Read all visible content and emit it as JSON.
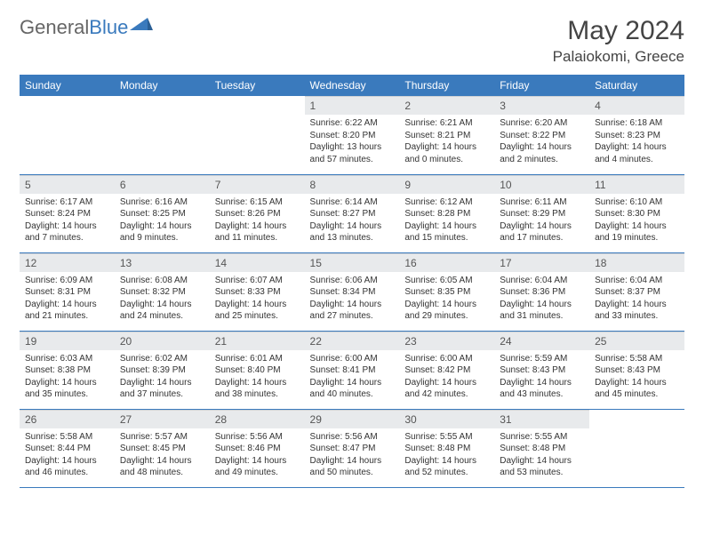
{
  "logo": {
    "general": "General",
    "blue": "Blue"
  },
  "title": "May 2024",
  "location": "Palaiokomi, Greece",
  "colors": {
    "accent": "#3a7abd",
    "daynum_bg": "#e8eaec",
    "text": "#333333",
    "header_text": "#444444"
  },
  "weekdays": [
    "Sunday",
    "Monday",
    "Tuesday",
    "Wednesday",
    "Thursday",
    "Friday",
    "Saturday"
  ],
  "weeks": [
    [
      null,
      null,
      null,
      {
        "n": "1",
        "sr": "Sunrise: 6:22 AM",
        "ss": "Sunset: 8:20 PM",
        "dl": "Daylight: 13 hours and 57 minutes."
      },
      {
        "n": "2",
        "sr": "Sunrise: 6:21 AM",
        "ss": "Sunset: 8:21 PM",
        "dl": "Daylight: 14 hours and 0 minutes."
      },
      {
        "n": "3",
        "sr": "Sunrise: 6:20 AM",
        "ss": "Sunset: 8:22 PM",
        "dl": "Daylight: 14 hours and 2 minutes."
      },
      {
        "n": "4",
        "sr": "Sunrise: 6:18 AM",
        "ss": "Sunset: 8:23 PM",
        "dl": "Daylight: 14 hours and 4 minutes."
      }
    ],
    [
      {
        "n": "5",
        "sr": "Sunrise: 6:17 AM",
        "ss": "Sunset: 8:24 PM",
        "dl": "Daylight: 14 hours and 7 minutes."
      },
      {
        "n": "6",
        "sr": "Sunrise: 6:16 AM",
        "ss": "Sunset: 8:25 PM",
        "dl": "Daylight: 14 hours and 9 minutes."
      },
      {
        "n": "7",
        "sr": "Sunrise: 6:15 AM",
        "ss": "Sunset: 8:26 PM",
        "dl": "Daylight: 14 hours and 11 minutes."
      },
      {
        "n": "8",
        "sr": "Sunrise: 6:14 AM",
        "ss": "Sunset: 8:27 PM",
        "dl": "Daylight: 14 hours and 13 minutes."
      },
      {
        "n": "9",
        "sr": "Sunrise: 6:12 AM",
        "ss": "Sunset: 8:28 PM",
        "dl": "Daylight: 14 hours and 15 minutes."
      },
      {
        "n": "10",
        "sr": "Sunrise: 6:11 AM",
        "ss": "Sunset: 8:29 PM",
        "dl": "Daylight: 14 hours and 17 minutes."
      },
      {
        "n": "11",
        "sr": "Sunrise: 6:10 AM",
        "ss": "Sunset: 8:30 PM",
        "dl": "Daylight: 14 hours and 19 minutes."
      }
    ],
    [
      {
        "n": "12",
        "sr": "Sunrise: 6:09 AM",
        "ss": "Sunset: 8:31 PM",
        "dl": "Daylight: 14 hours and 21 minutes."
      },
      {
        "n": "13",
        "sr": "Sunrise: 6:08 AM",
        "ss": "Sunset: 8:32 PM",
        "dl": "Daylight: 14 hours and 24 minutes."
      },
      {
        "n": "14",
        "sr": "Sunrise: 6:07 AM",
        "ss": "Sunset: 8:33 PM",
        "dl": "Daylight: 14 hours and 25 minutes."
      },
      {
        "n": "15",
        "sr": "Sunrise: 6:06 AM",
        "ss": "Sunset: 8:34 PM",
        "dl": "Daylight: 14 hours and 27 minutes."
      },
      {
        "n": "16",
        "sr": "Sunrise: 6:05 AM",
        "ss": "Sunset: 8:35 PM",
        "dl": "Daylight: 14 hours and 29 minutes."
      },
      {
        "n": "17",
        "sr": "Sunrise: 6:04 AM",
        "ss": "Sunset: 8:36 PM",
        "dl": "Daylight: 14 hours and 31 minutes."
      },
      {
        "n": "18",
        "sr": "Sunrise: 6:04 AM",
        "ss": "Sunset: 8:37 PM",
        "dl": "Daylight: 14 hours and 33 minutes."
      }
    ],
    [
      {
        "n": "19",
        "sr": "Sunrise: 6:03 AM",
        "ss": "Sunset: 8:38 PM",
        "dl": "Daylight: 14 hours and 35 minutes."
      },
      {
        "n": "20",
        "sr": "Sunrise: 6:02 AM",
        "ss": "Sunset: 8:39 PM",
        "dl": "Daylight: 14 hours and 37 minutes."
      },
      {
        "n": "21",
        "sr": "Sunrise: 6:01 AM",
        "ss": "Sunset: 8:40 PM",
        "dl": "Daylight: 14 hours and 38 minutes."
      },
      {
        "n": "22",
        "sr": "Sunrise: 6:00 AM",
        "ss": "Sunset: 8:41 PM",
        "dl": "Daylight: 14 hours and 40 minutes."
      },
      {
        "n": "23",
        "sr": "Sunrise: 6:00 AM",
        "ss": "Sunset: 8:42 PM",
        "dl": "Daylight: 14 hours and 42 minutes."
      },
      {
        "n": "24",
        "sr": "Sunrise: 5:59 AM",
        "ss": "Sunset: 8:43 PM",
        "dl": "Daylight: 14 hours and 43 minutes."
      },
      {
        "n": "25",
        "sr": "Sunrise: 5:58 AM",
        "ss": "Sunset: 8:43 PM",
        "dl": "Daylight: 14 hours and 45 minutes."
      }
    ],
    [
      {
        "n": "26",
        "sr": "Sunrise: 5:58 AM",
        "ss": "Sunset: 8:44 PM",
        "dl": "Daylight: 14 hours and 46 minutes."
      },
      {
        "n": "27",
        "sr": "Sunrise: 5:57 AM",
        "ss": "Sunset: 8:45 PM",
        "dl": "Daylight: 14 hours and 48 minutes."
      },
      {
        "n": "28",
        "sr": "Sunrise: 5:56 AM",
        "ss": "Sunset: 8:46 PM",
        "dl": "Daylight: 14 hours and 49 minutes."
      },
      {
        "n": "29",
        "sr": "Sunrise: 5:56 AM",
        "ss": "Sunset: 8:47 PM",
        "dl": "Daylight: 14 hours and 50 minutes."
      },
      {
        "n": "30",
        "sr": "Sunrise: 5:55 AM",
        "ss": "Sunset: 8:48 PM",
        "dl": "Daylight: 14 hours and 52 minutes."
      },
      {
        "n": "31",
        "sr": "Sunrise: 5:55 AM",
        "ss": "Sunset: 8:48 PM",
        "dl": "Daylight: 14 hours and 53 minutes."
      },
      null
    ]
  ]
}
